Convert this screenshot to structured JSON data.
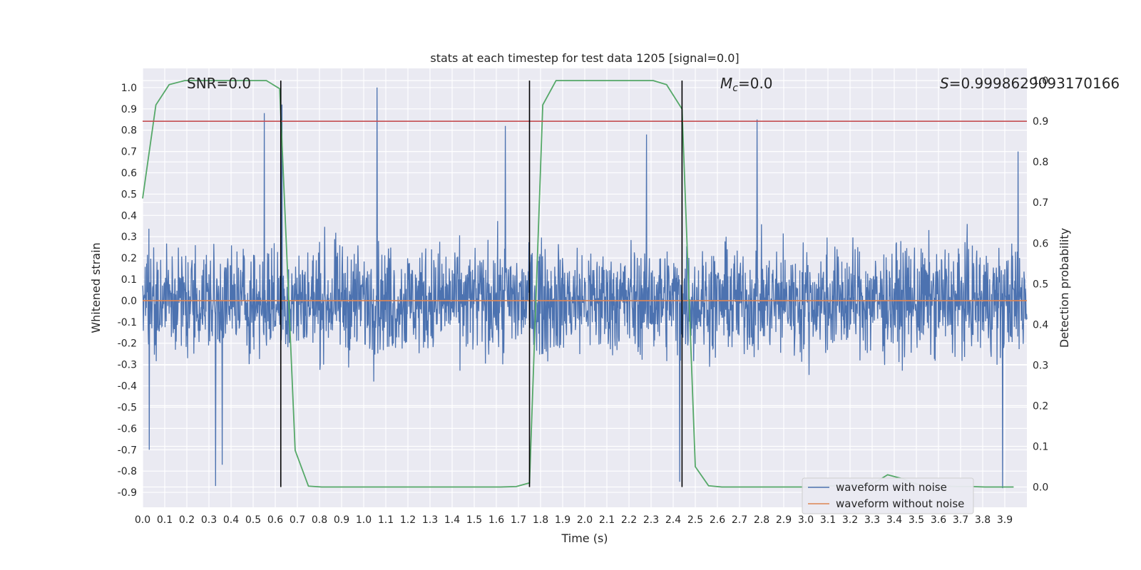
{
  "chart_data": {
    "type": "line",
    "title": "stats at each timestep for test data 1205 [signal=0.0]",
    "xlabel": "Time (s)",
    "ylabel": "Whitened strain",
    "y2label": "Detection probability",
    "xlim": [
      0.0,
      4.0
    ],
    "ylim": [
      -0.97,
      1.09
    ],
    "y2lim": [
      -0.05,
      1.03
    ],
    "xticks": [
      0.0,
      0.1,
      0.2,
      0.3,
      0.4,
      0.5,
      0.6,
      0.7,
      0.8,
      0.9,
      1.0,
      1.1,
      1.2,
      1.3,
      1.4,
      1.5,
      1.6,
      1.7,
      1.8,
      1.9,
      2.0,
      2.1,
      2.2,
      2.3,
      2.4,
      2.5,
      2.6,
      2.7,
      2.8,
      2.9,
      3.0,
      3.1,
      3.2,
      3.3,
      3.4,
      3.5,
      3.6,
      3.7,
      3.8,
      3.9
    ],
    "yticks": [
      1.0,
      0.9,
      0.8,
      0.7,
      0.6,
      0.5,
      0.4,
      0.3,
      0.2,
      0.1,
      0.0,
      -0.1,
      -0.2,
      -0.3,
      -0.4,
      -0.5,
      -0.6,
      -0.7,
      -0.8,
      -0.9
    ],
    "y2ticks": [
      1.0,
      0.9,
      0.8,
      0.7,
      0.6,
      0.5,
      0.4,
      0.3,
      0.2,
      0.1,
      0.0
    ],
    "grid": true,
    "legend_position": "bottom-right",
    "annotations": {
      "snr": "SNR=0.0",
      "mc_symbol": "M",
      "mc_sub": "c",
      "mc_value": "=0.0",
      "s_symbol": "S",
      "s_value": "=0.9998629093170166"
    },
    "series": [
      {
        "name": "waveform with noise",
        "color": "#4c72b0",
        "axis": "left",
        "noise_amplitude": 0.18,
        "spikes": [
          {
            "x": 0.03,
            "y": -0.7
          },
          {
            "x": 0.33,
            "y": -0.87
          },
          {
            "x": 0.36,
            "y": -0.77
          },
          {
            "x": 0.55,
            "y": 0.88
          },
          {
            "x": 0.63,
            "y": 0.92
          },
          {
            "x": 1.06,
            "y": 1.0
          },
          {
            "x": 1.64,
            "y": 0.82
          },
          {
            "x": 2.28,
            "y": 0.78
          },
          {
            "x": 2.78,
            "y": 0.85
          },
          {
            "x": 2.43,
            "y": -0.85
          },
          {
            "x": 3.89,
            "y": -0.88
          },
          {
            "x": 3.96,
            "y": 0.7
          }
        ]
      },
      {
        "name": "waveform without noise",
        "color": "#dd8452",
        "axis": "left",
        "x": [
          0.0,
          4.0
        ],
        "y": [
          0.0,
          0.0
        ]
      },
      {
        "name": "",
        "color": "#55a868",
        "axis": "right",
        "x": [
          0.0,
          0.06,
          0.12,
          0.19,
          0.25,
          0.31,
          0.37,
          0.44,
          0.5,
          0.56,
          0.62,
          0.69,
          0.75,
          0.81,
          0.87,
          0.94,
          1.0,
          1.06,
          1.12,
          1.19,
          1.25,
          1.31,
          1.37,
          1.44,
          1.5,
          1.56,
          1.62,
          1.69,
          1.75,
          1.81,
          1.87,
          1.94,
          2.0,
          2.06,
          2.12,
          2.19,
          2.25,
          2.31,
          2.37,
          2.44,
          2.5,
          2.56,
          2.62,
          2.69,
          2.75,
          2.81,
          2.87,
          2.94,
          3.0,
          3.06,
          3.12,
          3.19,
          3.25,
          3.31,
          3.37,
          3.44,
          3.5,
          3.56,
          3.62,
          3.69,
          3.75,
          3.81,
          3.87,
          3.94
        ],
        "y": [
          0.71,
          0.94,
          0.99,
          1.0,
          1.0,
          1.0,
          1.0,
          1.0,
          1.0,
          1.0,
          0.98,
          0.09,
          0.002,
          0.0,
          0.0,
          0.0,
          0.0,
          0.0,
          0.0,
          0.0,
          0.0,
          0.0,
          0.0,
          0.0,
          0.0,
          0.0,
          0.0,
          0.001,
          0.01,
          0.94,
          1.0,
          1.0,
          1.0,
          1.0,
          1.0,
          1.0,
          1.0,
          1.0,
          0.99,
          0.93,
          0.05,
          0.003,
          0.0,
          0.0,
          0.0,
          0.0,
          0.0,
          0.0,
          0.0,
          0.002,
          0.003,
          0.004,
          0.006,
          0.01,
          0.03,
          0.02,
          0.007,
          0.003,
          0.002,
          0.001,
          0.001,
          0.0,
          0.0,
          0.0
        ]
      }
    ],
    "hlines": [
      {
        "axis": "right",
        "y": 0.9,
        "color": "#c44e52"
      }
    ],
    "vlines": [
      0.625,
      1.75,
      2.44
    ]
  }
}
